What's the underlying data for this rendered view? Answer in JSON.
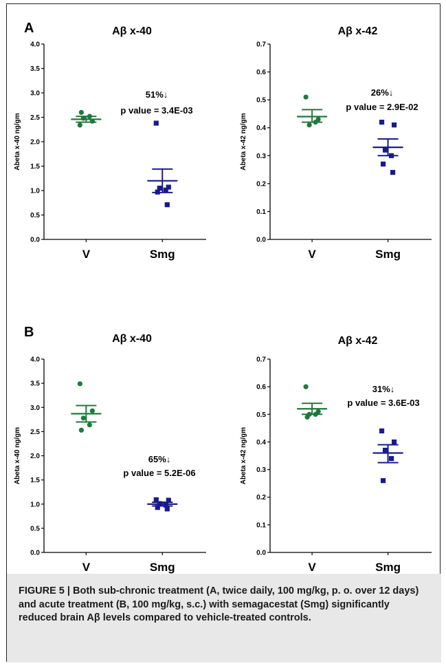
{
  "panels": {
    "a": {
      "letter": "A"
    },
    "b": {
      "letter": "B"
    }
  },
  "caption": "FIGURE 5 | Both sub-chronic treatment (A, twice daily, 100 mg/kg, p. o. over 12 days) and acute treatment (B, 100 mg/kg, s.c.) with semagacestat (Smg) significantly reduced brain Aβ levels compared to vehicle-treated controls.",
  "colors": {
    "vehicle": "#1e7a3c",
    "smg": "#1a1a8c"
  },
  "chart_data": [
    {
      "id": "A-40",
      "panel": "A",
      "type": "scatter",
      "title": "Aβ x-40",
      "ylabel": "Abeta x-40 ng/gm",
      "ylim": [
        0,
        4.0
      ],
      "yticks": [
        "0.0",
        "0.5",
        "1.0",
        "1.5",
        "2.0",
        "2.5",
        "3.0",
        "3.5",
        "4.0"
      ],
      "categories": [
        "V",
        "Smg"
      ],
      "series": [
        {
          "category": "V",
          "color": "#1e7a3c",
          "marker": "circle",
          "points": [
            2.34,
            2.42,
            2.48,
            2.52,
            2.6
          ],
          "mean": 2.46,
          "sem": [
            2.4,
            2.52
          ]
        },
        {
          "category": "Smg",
          "color": "#1a1a8c",
          "marker": "square",
          "points": [
            2.38,
            1.07,
            1.05,
            1.01,
            0.97,
            0.71
          ],
          "mean": 1.2,
          "sem": [
            0.96,
            1.44
          ]
        }
      ],
      "annotation": {
        "percent": "51%↓",
        "pvalue": "p value = 3.4E-03"
      }
    },
    {
      "id": "A-42",
      "panel": "A",
      "type": "scatter",
      "title": "Aβ x-42",
      "ylabel": "Abeta x-42 ng/gm",
      "ylim": [
        0,
        0.7
      ],
      "yticks": [
        "0.0",
        "0.1",
        "0.2",
        "0.3",
        "0.4",
        "0.5",
        "0.6",
        "0.7"
      ],
      "categories": [
        "V",
        "Smg"
      ],
      "series": [
        {
          "category": "V",
          "color": "#1e7a3c",
          "marker": "circle",
          "points": [
            0.51,
            0.43,
            0.41,
            0.42
          ],
          "mean": 0.44,
          "sem": [
            0.42,
            0.465
          ]
        },
        {
          "category": "Smg",
          "color": "#1a1a8c",
          "marker": "square",
          "points": [
            0.42,
            0.41,
            0.32,
            0.3,
            0.27,
            0.24
          ],
          "mean": 0.33,
          "sem": [
            0.3,
            0.36
          ]
        }
      ],
      "annotation": {
        "percent": "26%↓",
        "pvalue": "p value = 2.9E-02"
      }
    },
    {
      "id": "B-40",
      "panel": "B",
      "type": "scatter",
      "title": "Aβ x-40",
      "ylabel": "Abeta x-40 ng/gm",
      "ylim": [
        0,
        4.0
      ],
      "yticks": [
        "0.0",
        "0.5",
        "1.0",
        "1.5",
        "2.0",
        "2.5",
        "3.0",
        "3.5",
        "4.0"
      ],
      "categories": [
        "V",
        "Smg"
      ],
      "series": [
        {
          "category": "V",
          "color": "#1e7a3c",
          "marker": "circle",
          "points": [
            3.49,
            2.93,
            2.78,
            2.64,
            2.53
          ],
          "mean": 2.87,
          "sem": [
            2.7,
            3.04
          ]
        },
        {
          "category": "Smg",
          "color": "#1a1a8c",
          "marker": "square",
          "points": [
            1.09,
            1.08,
            1.01,
            0.98,
            0.93,
            0.9
          ],
          "mean": 1.0,
          "sem": [
            0.96,
            1.04
          ]
        }
      ],
      "annotation": {
        "percent": "65%↓",
        "pvalue": "p value = 5.2E-06"
      }
    },
    {
      "id": "B-42",
      "panel": "B",
      "type": "scatter",
      "title": "Aβ x-42",
      "ylabel": "Abeta x-42 ng/gm",
      "ylim": [
        0,
        0.7
      ],
      "yticks": [
        "0.0",
        "0.1",
        "0.2",
        "0.3",
        "0.4",
        "0.5",
        "0.6",
        "0.7"
      ],
      "categories": [
        "V",
        "Smg"
      ],
      "series": [
        {
          "category": "V",
          "color": "#1e7a3c",
          "marker": "circle",
          "points": [
            0.6,
            0.51,
            0.5,
            0.5,
            0.49
          ],
          "mean": 0.52,
          "sem": [
            0.5,
            0.54
          ]
        },
        {
          "category": "Smg",
          "color": "#1a1a8c",
          "marker": "square",
          "points": [
            0.44,
            0.4,
            0.37,
            0.34,
            0.26
          ],
          "mean": 0.36,
          "sem": [
            0.325,
            0.39
          ]
        }
      ],
      "annotation": {
        "percent": "31%↓",
        "pvalue": "p value = 3.6E-03"
      }
    }
  ]
}
